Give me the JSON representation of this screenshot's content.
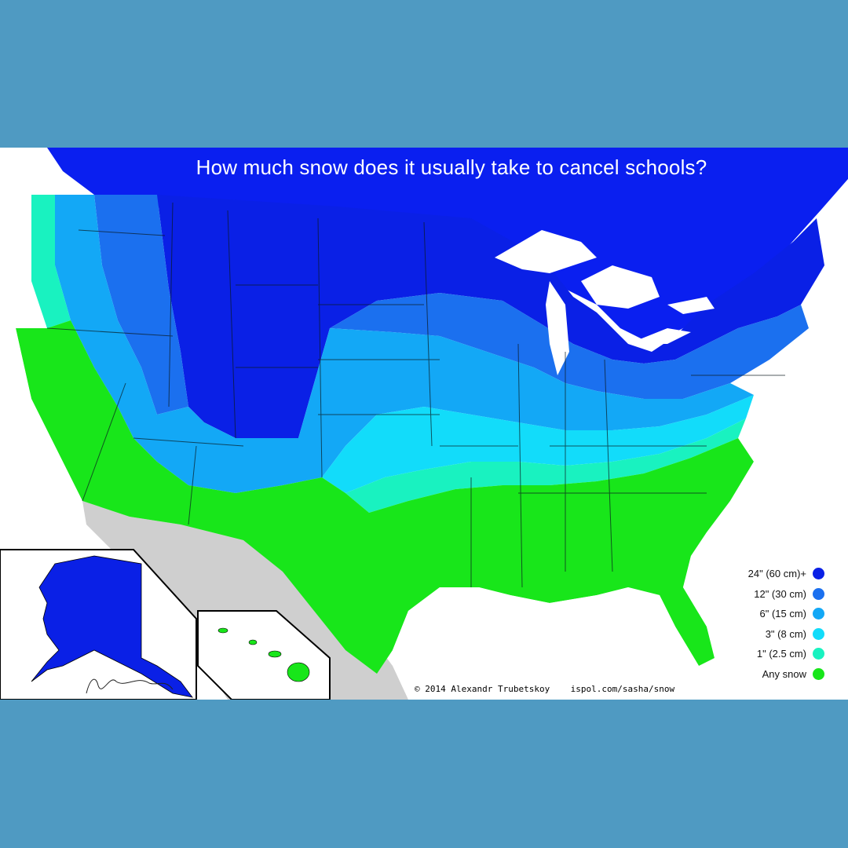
{
  "title": "How much snow does it usually take to cancel schools?",
  "legend": [
    {
      "label": "24\" (60 cm)+",
      "color": "#0a20e6"
    },
    {
      "label": "12\" (30 cm)",
      "color": "#1b70ef"
    },
    {
      "label": "6\" (15 cm)",
      "color": "#13a8f6"
    },
    {
      "label": "3\" (8 cm)",
      "color": "#12dcfa"
    },
    {
      "label": "1\" (2.5 cm)",
      "color": "#19f2c0"
    },
    {
      "label": "Any snow",
      "color": "#18e61a"
    }
  ],
  "credit": "© 2014 Alexandr Trubetskoy    ispol.com/sasha/snow",
  "colors": {
    "outer_background": "#4f9ac2",
    "map_background": "#ffffff",
    "canada": "#0a1ff0",
    "mexico": "#cfcfcf",
    "lakes": "#ffffff",
    "borders": "#0a1a20"
  },
  "map_regions": [
    "alaska-inset",
    "hawaii-inset",
    "contiguous-us",
    "canada",
    "mexico",
    "great-lakes"
  ]
}
